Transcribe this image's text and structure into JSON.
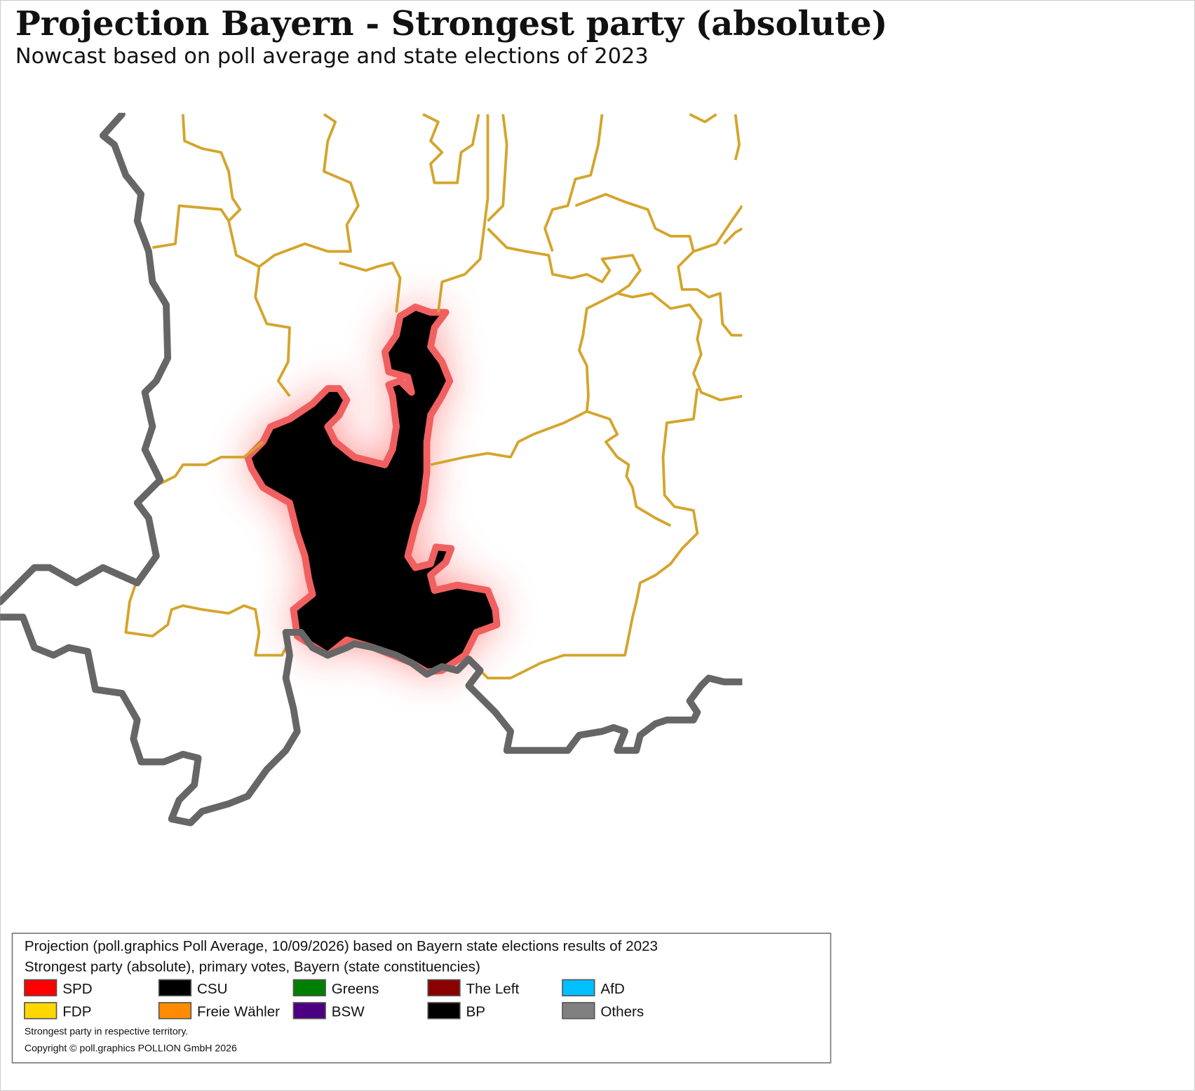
{
  "header": {
    "title": "Projection Bayern - Strongest party (absolute)",
    "subtitle": "Nowcast based on poll average and state elections of 2023"
  },
  "legend": {
    "description": [
      "Projection (poll.graphics Poll Average, 10/09/2026) based on Bayern state elections results of 2023",
      "Strongest party (absolute), primary votes, Bayern (state constituencies)"
    ],
    "items": [
      {
        "label": "SPD",
        "color": "#ff0000"
      },
      {
        "label": "CSU",
        "color": "#000000"
      },
      {
        "label": "Greens",
        "color": "#008000"
      },
      {
        "label": "The Left",
        "color": "#8b0000"
      },
      {
        "label": "AfD",
        "color": "#00bfff"
      },
      {
        "label": "FDP",
        "color": "#ffd700"
      },
      {
        "label": "Freie Wähler",
        "color": "#ff8c00"
      },
      {
        "label": "BSW",
        "color": "#4b0082"
      },
      {
        "label": "BP",
        "color": "#000000"
      },
      {
        "label": "Others",
        "color": "#808080"
      }
    ],
    "notes": [
      "Strongest party in respective territory.",
      "Copyright © poll.graphics POLLION GmbH 2026"
    ]
  }
}
